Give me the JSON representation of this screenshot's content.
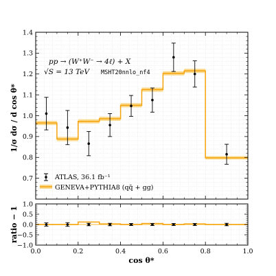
{
  "chart_data": [
    {
      "type": "line",
      "panel": "main",
      "xlim": [
        0,
        1
      ],
      "ylim": [
        0.6,
        1.4
      ],
      "grid": true,
      "ylabel": "1/σ dσ / d cos θ*",
      "yticks": [
        "0.7",
        "0.8",
        "0.9",
        "1.0",
        "1.1",
        "1.2",
        "1.3",
        "1.4"
      ],
      "annotation": {
        "line1": "pp → (W⁺W⁻ → 4ℓ) + X",
        "line2": "√S = 13 TeV",
        "pdf": "MSHT20nnlo_nf4"
      },
      "legend": {
        "placement": "lower-left",
        "data_label": "ATLAS, 36.1 fb⁻¹",
        "mc_label": "GENEVA+PYTHIA8 (qq̄ + gg)"
      },
      "colors": {
        "mc": "#f5a20a",
        "band": "#fbd98d",
        "data": "#000000",
        "grid": "#e6e6e6"
      },
      "series": [
        {
          "name": "GENEVA+PYTHIA8 (qq̄ + gg)",
          "kind": "step",
          "edges": [
            0.0,
            0.1,
            0.2,
            0.3,
            0.4,
            0.5,
            0.6,
            0.7,
            0.8,
            1.0
          ],
          "values": [
            0.965,
            0.888,
            0.973,
            0.985,
            1.05,
            1.125,
            1.203,
            1.215,
            0.798
          ],
          "band_lo": [
            0.955,
            0.878,
            0.963,
            0.975,
            1.04,
            1.115,
            1.193,
            1.205,
            0.79
          ],
          "band_hi": [
            0.975,
            0.898,
            0.983,
            0.995,
            1.06,
            1.135,
            1.213,
            1.225,
            0.806
          ]
        },
        {
          "name": "ATLAS, 36.1 fb⁻¹",
          "kind": "points",
          "x": [
            0.05,
            0.15,
            0.25,
            0.35,
            0.45,
            0.55,
            0.65,
            0.75,
            0.9
          ],
          "y": [
            1.01,
            0.943,
            0.866,
            0.955,
            1.047,
            1.075,
            1.28,
            1.2,
            0.815
          ],
          "err": [
            0.078,
            0.082,
            0.058,
            0.055,
            0.05,
            0.058,
            0.068,
            0.063,
            0.048
          ]
        }
      ]
    },
    {
      "type": "line",
      "panel": "ratio",
      "xlim": [
        0,
        1
      ],
      "ylim": [
        -1,
        1
      ],
      "grid": true,
      "xlabel": "cos θ*",
      "ylabel": "ratio − 1",
      "yticks": [
        "−1.0",
        "−0.5",
        "0.0",
        "0.5",
        "1.0"
      ],
      "xticks": [
        "0.0",
        "0.2",
        "0.4",
        "0.6",
        "0.8",
        "1.0"
      ],
      "series": [
        {
          "name": "GENEVA+PYTHIA8 (qq̄ + gg)",
          "kind": "step",
          "edges": [
            0.0,
            0.1,
            0.2,
            0.3,
            0.4,
            0.5,
            0.6,
            0.7,
            0.8,
            1.0
          ],
          "values": [
            0.0,
            0.0,
            0.12,
            0.03,
            0.0,
            0.05,
            0.0,
            0.03,
            0.0
          ]
        },
        {
          "name": "ATLAS, 36.1 fb⁻¹",
          "kind": "points",
          "x": [
            0.05,
            0.15,
            0.25,
            0.35,
            0.45,
            0.55,
            0.65,
            0.75,
            0.9
          ],
          "y": [
            0.0,
            0.0,
            0.0,
            0.0,
            0.0,
            0.0,
            0.0,
            0.0,
            0.0
          ],
          "err": [
            0.08,
            0.09,
            0.06,
            0.06,
            0.05,
            0.05,
            0.05,
            0.05,
            0.06
          ]
        }
      ]
    }
  ]
}
